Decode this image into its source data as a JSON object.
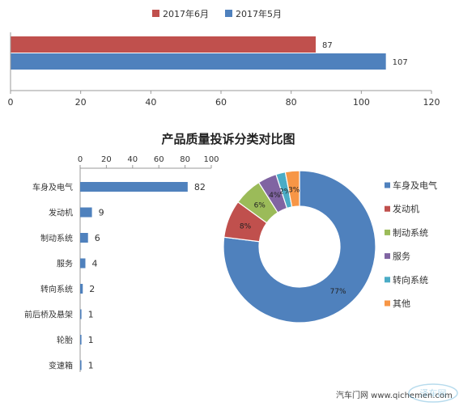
{
  "charts": {
    "top_bar": {
      "type": "bar",
      "orientation": "horizontal",
      "series": [
        {
          "name": "2017年6月",
          "value": 87,
          "color": "#c0504d"
        },
        {
          "name": "2017年5月",
          "value": 107,
          "color": "#4f81bd"
        }
      ],
      "legend_order": [
        "2017年6月",
        "2017年5月"
      ],
      "xlim": [
        0,
        120
      ],
      "xticks": [
        0,
        20,
        40,
        60,
        80,
        100,
        120
      ],
      "grid": false,
      "legend_position": "top"
    },
    "title": "产品质量投诉分类对比图",
    "category_bar": {
      "type": "bar",
      "orientation": "horizontal",
      "categories": [
        "车身及电气",
        "发动机",
        "制动系统",
        "服务",
        "转向系统",
        "前后桥及悬架",
        "轮胎",
        "变速箱"
      ],
      "values": [
        82,
        9,
        6,
        4,
        2,
        1,
        1,
        1
      ],
      "xlim": [
        0,
        100
      ],
      "xticks": [
        0,
        20,
        40,
        60,
        80,
        100
      ],
      "color": "#4f81bd",
      "axis_position": "top"
    },
    "donut": {
      "type": "pie",
      "hole": true,
      "start_angle_deg": 0,
      "slices": [
        {
          "name": "车身及电气",
          "value": 77,
          "label": "77%",
          "color": "#4f81bd"
        },
        {
          "name": "发动机",
          "value": 8,
          "label": "8%",
          "color": "#c0504d"
        },
        {
          "name": "制动系统",
          "value": 6,
          "label": "6%",
          "color": "#9bbb59"
        },
        {
          "name": "服务",
          "value": 4,
          "label": "4%",
          "color": "#8064a2"
        },
        {
          "name": "转向系统",
          "value": 2,
          "label": "2%",
          "color": "#4bacc6"
        },
        {
          "name": "其他",
          "value": 3,
          "label": "3%",
          "color": "#f79646"
        }
      ],
      "legend_position": "right"
    }
  },
  "watermark": {
    "text": "汽车门网 www.qichemen.com"
  },
  "logo": {
    "text": "泽车网"
  }
}
